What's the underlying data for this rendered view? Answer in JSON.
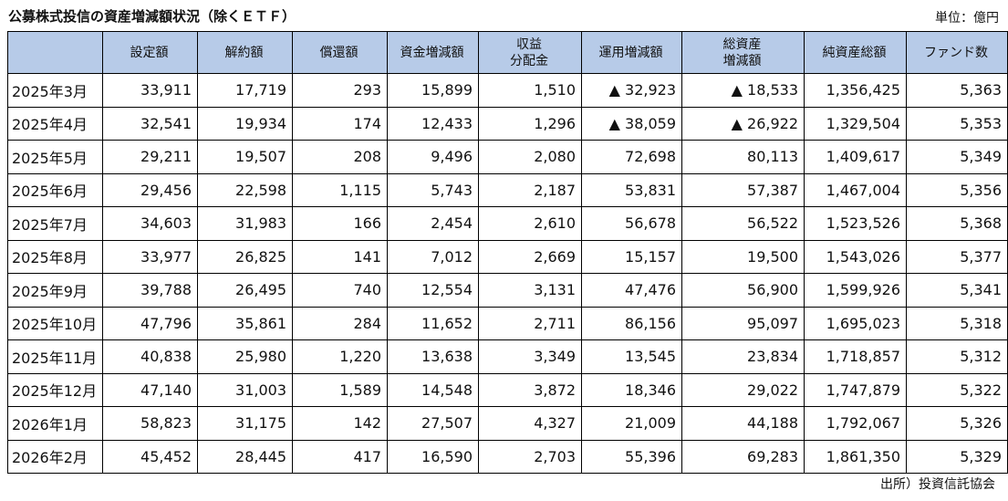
{
  "title": "公募株式投信の資産増減額状況（除くＥＴＦ）",
  "unit": "単位：億円",
  "source": "出所）投資信託協会",
  "headers": [
    "",
    "設定額",
    "解約額",
    "償還額",
    "資金増減額",
    "収益\n分配金",
    "運用増減額",
    "総資産\n増減額",
    "純資産総額",
    "ファンド数"
  ],
  "rows": [
    [
      "2025年3月",
      "33,911",
      "17,719",
      "293",
      "15,899",
      "1,510",
      "▲ 32,923",
      "▲ 18,533",
      "1,356,425",
      "5,363"
    ],
    [
      "2025年4月",
      "32,541",
      "19,934",
      "174",
      "12,433",
      "1,296",
      "▲ 38,059",
      "▲ 26,922",
      "1,329,504",
      "5,353"
    ],
    [
      "2025年5月",
      "29,211",
      "19,507",
      "208",
      "9,496",
      "2,080",
      "72,698",
      "80,113",
      "1,409,617",
      "5,349"
    ],
    [
      "2025年6月",
      "29,456",
      "22,598",
      "1,115",
      "5,743",
      "2,187",
      "53,831",
      "57,387",
      "1,467,004",
      "5,356"
    ],
    [
      "2025年7月",
      "34,603",
      "31,983",
      "166",
      "2,454",
      "2,610",
      "56,678",
      "56,522",
      "1,523,526",
      "5,368"
    ],
    [
      "2025年8月",
      "33,977",
      "26,825",
      "141",
      "7,012",
      "2,669",
      "15,157",
      "19,500",
      "1,543,026",
      "5,377"
    ],
    [
      "2025年9月",
      "39,788",
      "26,495",
      "740",
      "12,554",
      "3,131",
      "47,476",
      "56,900",
      "1,599,926",
      "5,341"
    ],
    [
      "2025年10月",
      "47,796",
      "35,861",
      "284",
      "11,652",
      "2,711",
      "86,156",
      "95,097",
      "1,695,023",
      "5,318"
    ],
    [
      "2025年11月",
      "40,838",
      "25,980",
      "1,220",
      "13,638",
      "3,349",
      "13,545",
      "23,834",
      "1,718,857",
      "5,312"
    ],
    [
      "2025年12月",
      "47,140",
      "31,003",
      "1,589",
      "14,548",
      "3,872",
      "18,346",
      "29,022",
      "1,747,879",
      "5,322"
    ],
    [
      "2026年1月",
      "58,823",
      "31,175",
      "142",
      "27,507",
      "4,327",
      "21,009",
      "44,188",
      "1,792,067",
      "5,326"
    ],
    [
      "2026年2月",
      "45,452",
      "28,445",
      "417",
      "16,590",
      "2,703",
      "55,396",
      "69,283",
      "1,861,350",
      "5,329"
    ]
  ],
  "colors": {
    "header_bg": "#b7cbe8",
    "border": "#000000"
  }
}
